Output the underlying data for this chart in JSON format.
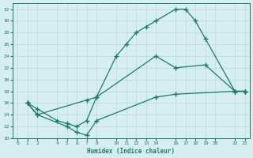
{
  "xlabel": "Humidex (Indice chaleur)",
  "bg_color": "#d6eef0",
  "grid_color": "#b8d8dc",
  "line_color": "#1a7a6e",
  "xlim": [
    -0.5,
    23.5
  ],
  "ylim": [
    10,
    33
  ],
  "yticks": [
    10,
    12,
    14,
    16,
    18,
    20,
    22,
    24,
    26,
    28,
    30,
    32
  ],
  "xtick_positions": [
    0,
    1,
    2,
    4,
    5,
    6,
    7,
    8,
    10,
    11,
    12,
    13,
    14,
    16,
    17,
    18,
    19,
    20,
    22,
    23
  ],
  "xtick_labels": [
    "0",
    "1",
    "2",
    "4",
    "5",
    "6",
    "7",
    "8",
    "10",
    "11",
    "12",
    "13",
    "14",
    "16",
    "17",
    "18",
    "19",
    "20",
    "22",
    "23"
  ],
  "line1_x": [
    1,
    2,
    4,
    5,
    6,
    7,
    8,
    10,
    11,
    12,
    13,
    14,
    16,
    17,
    18,
    19,
    22,
    23
  ],
  "line1_y": [
    16,
    15,
    13,
    12.5,
    12,
    13,
    17,
    24,
    26,
    28,
    29,
    30,
    32,
    32,
    30,
    27,
    18,
    18
  ],
  "line2_x": [
    1,
    2,
    7,
    8,
    14,
    16,
    19,
    22,
    23
  ],
  "line2_y": [
    16,
    14,
    16.5,
    17,
    24,
    22,
    22.5,
    18,
    18
  ],
  "line3_x": [
    1,
    2,
    5,
    6,
    7,
    8,
    14,
    16,
    22,
    23
  ],
  "line3_y": [
    16,
    14,
    12,
    11,
    10.5,
    13,
    17,
    17.5,
    18,
    18
  ],
  "marker": "+",
  "markersize": 4,
  "linewidth": 0.9
}
